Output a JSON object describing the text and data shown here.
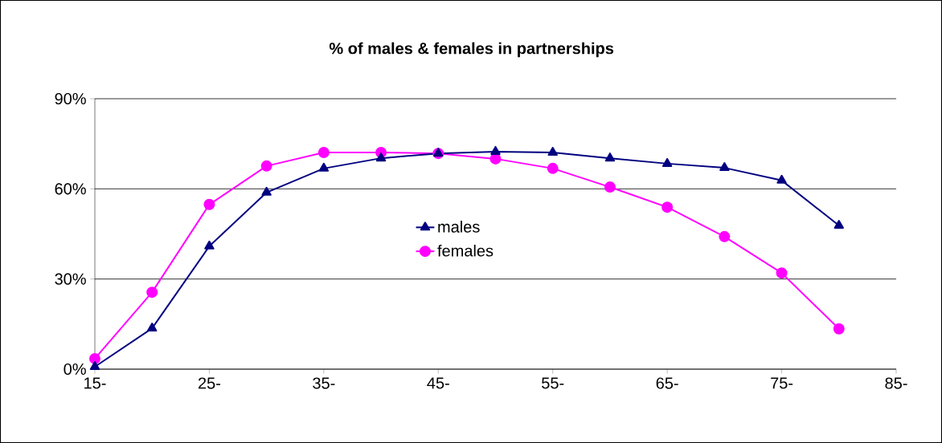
{
  "chart_data": {
    "type": "line",
    "title": "% of males & females in partnerships",
    "x": [
      15,
      20,
      25,
      30,
      35,
      40,
      45,
      50,
      55,
      60,
      65,
      70,
      75,
      80
    ],
    "series": [
      {
        "name": "males",
        "color": "#000080",
        "marker": "triangle",
        "values": [
          0.8,
          13.6,
          40.9,
          58.8,
          66.8,
          70.2,
          71.8,
          72.4,
          72.1,
          70.2,
          68.4,
          67.0,
          62.8,
          47.8
        ]
      },
      {
        "name": "females",
        "color": "#ff00ff",
        "marker": "circle",
        "values": [
          3.5,
          25.6,
          54.8,
          67.6,
          72.1,
          72.1,
          71.8,
          70.0,
          66.8,
          60.6,
          53.9,
          44.1,
          32.0,
          13.4
        ]
      }
    ],
    "xlim": [
      15,
      85
    ],
    "xticks": [
      {
        "value": 15,
        "label": "15-"
      },
      {
        "value": 25,
        "label": "25-"
      },
      {
        "value": 35,
        "label": "35-"
      },
      {
        "value": 45,
        "label": "45-"
      },
      {
        "value": 55,
        "label": "55-"
      },
      {
        "value": 65,
        "label": "65-"
      },
      {
        "value": 75,
        "label": "75-"
      },
      {
        "value": 85,
        "label": "85-"
      }
    ],
    "ylim": [
      0,
      90
    ],
    "yticks": [
      {
        "value": 0,
        "label": "0%"
      },
      {
        "value": 30,
        "label": "30%"
      },
      {
        "value": 60,
        "label": "60%"
      },
      {
        "value": 90,
        "label": "90%"
      }
    ],
    "grid": "y",
    "legend": "center",
    "line_style": "solid"
  }
}
